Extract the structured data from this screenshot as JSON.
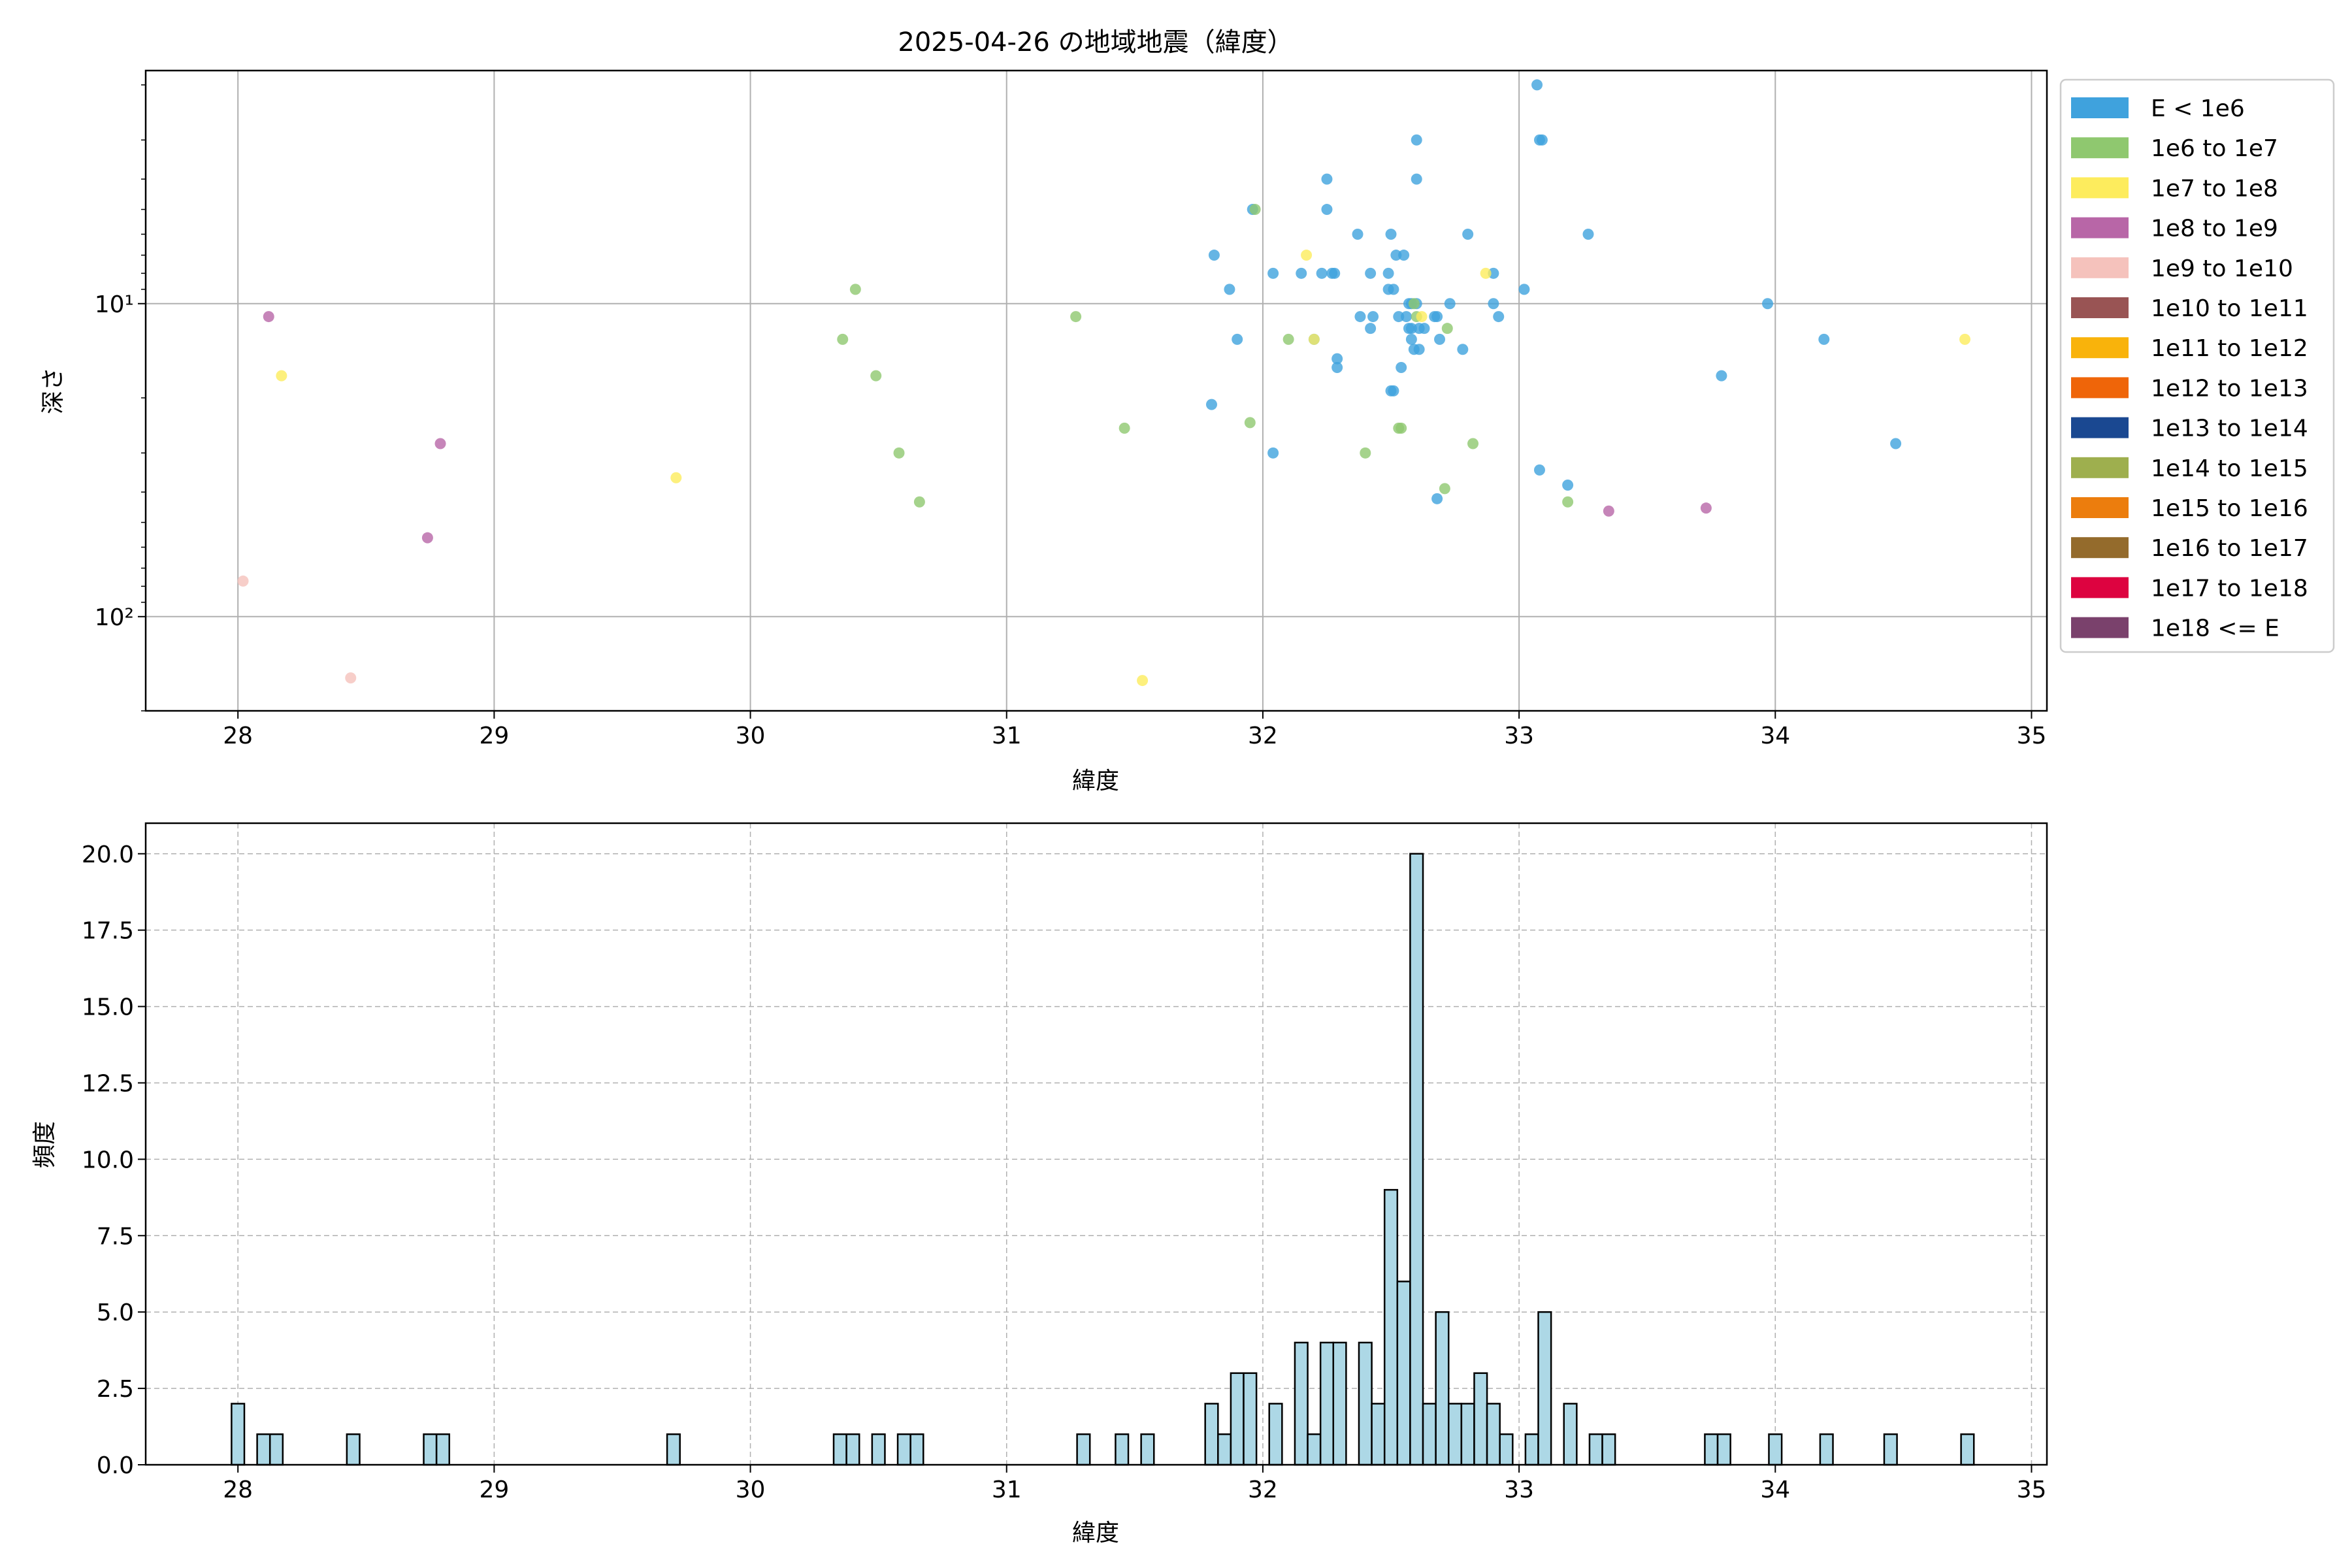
{
  "chart_data": [
    {
      "type": "scatter",
      "title": "2025-04-26 の地域地震（緯度）",
      "xlabel": "緯度",
      "ylabel": "深さ",
      "xlim": [
        27.64,
        35.06
      ],
      "ylim": [
        200,
        1.8
      ],
      "yscale": "log",
      "y_inverted": true,
      "grid": true,
      "legend_position": "outside-right",
      "xticks": [
        28,
        29,
        30,
        31,
        32,
        33,
        34,
        35
      ],
      "yticks": [
        {
          "value": 10,
          "label": "10¹"
        },
        {
          "value": 100,
          "label": "10²"
        }
      ],
      "legend": [
        {
          "label": "E < 1e6",
          "color": "#3fa2dd"
        },
        {
          "label": "1e6 to 1e7",
          "color": "#8fc86f"
        },
        {
          "label": "1e7 to 1e8",
          "color": "#fdec5d"
        },
        {
          "label": "1e8 to 1e9",
          "color": "#b866a7"
        },
        {
          "label": "1e9 to 1e10",
          "color": "#f5c2bc"
        },
        {
          "label": "1e10 to 1e11",
          "color": "#995454"
        },
        {
          "label": "1e11 to 1e12",
          "color": "#f9b30b"
        },
        {
          "label": "1e12 to 1e13",
          "color": "#ef6509"
        },
        {
          "label": "1e13 to 1e14",
          "color": "#1a4891"
        },
        {
          "label": "1e14 to 1e15",
          "color": "#9eaf4e"
        },
        {
          "label": "1e15 to 1e16",
          "color": "#ec7d0d"
        },
        {
          "label": "1e16 to 1e17",
          "color": "#946b2c"
        },
        {
          "label": "1e17 to 1e18",
          "color": "#dd0340"
        },
        {
          "label": "1e18 <= E",
          "color": "#7a416c"
        }
      ],
      "series": [
        {
          "name": "E < 1e6",
          "points": [
            [
              33.07,
              2.0
            ],
            [
              33.08,
              3.0
            ],
            [
              33.09,
              3.0
            ],
            [
              32.6,
              3.0
            ],
            [
              32.6,
              4.0
            ],
            [
              32.25,
              4.0
            ],
            [
              32.25,
              5.0
            ],
            [
              31.96,
              5.0
            ],
            [
              32.5,
              6.0
            ],
            [
              32.8,
              6.0
            ],
            [
              33.27,
              6.0
            ],
            [
              32.37,
              6.0
            ],
            [
              31.81,
              7.0
            ],
            [
              32.52,
              7.0
            ],
            [
              32.55,
              7.0
            ],
            [
              32.04,
              8.0
            ],
            [
              32.15,
              8.0
            ],
            [
              32.23,
              8.0
            ],
            [
              32.27,
              8.0
            ],
            [
              32.28,
              8.0
            ],
            [
              32.42,
              8.0
            ],
            [
              32.49,
              8.0
            ],
            [
              32.9,
              8.0
            ],
            [
              31.87,
              9.0
            ],
            [
              32.49,
              9.0
            ],
            [
              32.51,
              9.0
            ],
            [
              33.02,
              9.0
            ],
            [
              32.57,
              10.0
            ],
            [
              32.73,
              10.0
            ],
            [
              32.9,
              10.0
            ],
            [
              33.97,
              10.0
            ],
            [
              32.58,
              10.0
            ],
            [
              32.6,
              10.0
            ],
            [
              32.38,
              11.0
            ],
            [
              32.43,
              11.0
            ],
            [
              32.53,
              11.0
            ],
            [
              32.56,
              11.0
            ],
            [
              32.67,
              11.0
            ],
            [
              32.68,
              11.0
            ],
            [
              32.92,
              11.0
            ],
            [
              32.42,
              12.0
            ],
            [
              32.57,
              12.0
            ],
            [
              32.61,
              12.0
            ],
            [
              32.63,
              12.0
            ],
            [
              32.58,
              12.0
            ],
            [
              31.9,
              13.0
            ],
            [
              32.58,
              13.0
            ],
            [
              32.69,
              13.0
            ],
            [
              32.2,
              13.0
            ],
            [
              32.59,
              14.0
            ],
            [
              32.61,
              14.0
            ],
            [
              32.78,
              14.0
            ],
            [
              32.29,
              15.0
            ],
            [
              32.29,
              16.0
            ],
            [
              32.54,
              16.0
            ],
            [
              34.19,
              13.0
            ],
            [
              32.5,
              19.0
            ],
            [
              32.51,
              19.0
            ],
            [
              33.79,
              17.0
            ],
            [
              31.8,
              21.0
            ],
            [
              34.47,
              28.0
            ],
            [
              32.04,
              30.0
            ],
            [
              33.08,
              34.0
            ],
            [
              33.19,
              38.0
            ],
            [
              32.68,
              42.0
            ]
          ]
        },
        {
          "name": "1e6 to 1e7",
          "points": [
            [
              31.97,
              5.0
            ],
            [
              30.41,
              9.0
            ],
            [
              31.27,
              11.0
            ],
            [
              30.36,
              13.0
            ],
            [
              32.72,
              12.0
            ],
            [
              30.49,
              17.0
            ],
            [
              32.1,
              13.0
            ],
            [
              31.95,
              24.0
            ],
            [
              31.46,
              25.0
            ],
            [
              32.53,
              25.0
            ],
            [
              32.54,
              25.0
            ],
            [
              32.82,
              28.0
            ],
            [
              32.4,
              30.0
            ],
            [
              30.58,
              30.0
            ],
            [
              32.71,
              39.0
            ],
            [
              30.66,
              43.0
            ],
            [
              33.19,
              43.0
            ],
            [
              32.59,
              10.0
            ],
            [
              32.6,
              11.0
            ]
          ]
        },
        {
          "name": "1e7 to 1e8",
          "points": [
            [
              32.17,
              7.0
            ],
            [
              32.87,
              8.0
            ],
            [
              32.62,
              11.0
            ],
            [
              32.2,
              13.0
            ],
            [
              34.74,
              13.0
            ],
            [
              28.17,
              17.0
            ],
            [
              29.71,
              36.0
            ],
            [
              31.53,
              160.0
            ]
          ]
        },
        {
          "name": "1e8 to 1e9",
          "points": [
            [
              28.12,
              11.0
            ],
            [
              28.79,
              28.0
            ],
            [
              28.74,
              56.0
            ],
            [
              33.35,
              46.0
            ],
            [
              33.73,
              45.0
            ]
          ]
        },
        {
          "name": "1e9 to 1e10",
          "points": [
            [
              28.02,
              77.0
            ],
            [
              28.44,
              157.0
            ]
          ]
        }
      ]
    },
    {
      "type": "bar",
      "subtype": "histogram",
      "xlabel": "緯度",
      "ylabel": "頻度",
      "xlim": [
        27.64,
        35.06
      ],
      "ylim": [
        0,
        21
      ],
      "grid": true,
      "bar_color": "#add8e6",
      "bin_width": 0.05,
      "xticks": [
        28,
        29,
        30,
        31,
        32,
        33,
        34,
        35
      ],
      "yticks": [
        "0.0",
        "2.5",
        "5.0",
        "7.5",
        "10.0",
        "12.5",
        "15.0",
        "17.5",
        "20.0"
      ],
      "bins": [
        {
          "x": 28.0,
          "count": 2
        },
        {
          "x": 28.1,
          "count": 1
        },
        {
          "x": 28.15,
          "count": 1
        },
        {
          "x": 28.45,
          "count": 1
        },
        {
          "x": 28.75,
          "count": 1
        },
        {
          "x": 28.8,
          "count": 1
        },
        {
          "x": 29.7,
          "count": 1
        },
        {
          "x": 30.35,
          "count": 1
        },
        {
          "x": 30.4,
          "count": 1
        },
        {
          "x": 30.5,
          "count": 1
        },
        {
          "x": 30.6,
          "count": 1
        },
        {
          "x": 30.65,
          "count": 1
        },
        {
          "x": 31.3,
          "count": 1
        },
        {
          "x": 31.45,
          "count": 1
        },
        {
          "x": 31.55,
          "count": 1
        },
        {
          "x": 31.8,
          "count": 2
        },
        {
          "x": 31.85,
          "count": 1
        },
        {
          "x": 31.9,
          "count": 3
        },
        {
          "x": 31.95,
          "count": 3
        },
        {
          "x": 32.05,
          "count": 2
        },
        {
          "x": 32.15,
          "count": 4
        },
        {
          "x": 32.2,
          "count": 1
        },
        {
          "x": 32.25,
          "count": 4
        },
        {
          "x": 32.3,
          "count": 4
        },
        {
          "x": 32.4,
          "count": 4
        },
        {
          "x": 32.45,
          "count": 2
        },
        {
          "x": 32.5,
          "count": 9
        },
        {
          "x": 32.55,
          "count": 6
        },
        {
          "x": 32.6,
          "count": 20
        },
        {
          "x": 32.65,
          "count": 2
        },
        {
          "x": 32.7,
          "count": 5
        },
        {
          "x": 32.75,
          "count": 2
        },
        {
          "x": 32.8,
          "count": 2
        },
        {
          "x": 32.85,
          "count": 3
        },
        {
          "x": 32.9,
          "count": 2
        },
        {
          "x": 32.95,
          "count": 1
        },
        {
          "x": 33.05,
          "count": 1
        },
        {
          "x": 33.1,
          "count": 5
        },
        {
          "x": 33.2,
          "count": 2
        },
        {
          "x": 33.3,
          "count": 1
        },
        {
          "x": 33.35,
          "count": 1
        },
        {
          "x": 33.75,
          "count": 1
        },
        {
          "x": 33.8,
          "count": 1
        },
        {
          "x": 34.0,
          "count": 1
        },
        {
          "x": 34.2,
          "count": 1
        },
        {
          "x": 34.45,
          "count": 1
        },
        {
          "x": 34.75,
          "count": 1
        }
      ]
    }
  ]
}
